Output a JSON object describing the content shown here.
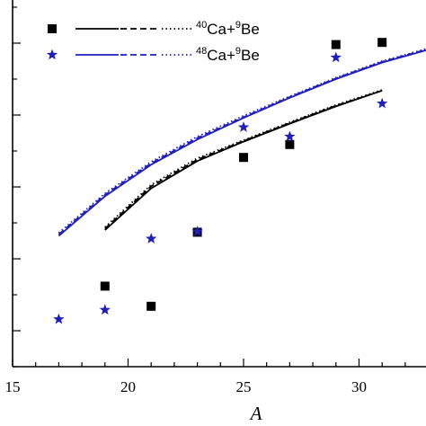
{
  "chart_data": {
    "type": "scatter",
    "xlabel": "A",
    "ylabel": "",
    "xlim": [
      15,
      32.9
    ],
    "ylim": [
      0,
      5.1
    ],
    "x_ticks": [
      15,
      20,
      25,
      30
    ],
    "x_tick_labels": [
      "15",
      "20",
      "25",
      "30"
    ],
    "y_ticks": [
      0.5,
      1.5,
      2.5,
      3.5,
      4.5
    ],
    "grid": false,
    "legend_position": "top-left",
    "series": [
      {
        "name_parts": {
          "mass1": "40",
          "elem1": "Ca+",
          "mass2": "9",
          "elem2": "Be"
        },
        "marker": "square",
        "color": "#000000",
        "points": [
          {
            "x": 19,
            "y": 1.12
          },
          {
            "x": 21,
            "y": 0.84
          },
          {
            "x": 23,
            "y": 1.87
          },
          {
            "x": 25,
            "y": 2.91
          },
          {
            "x": 27,
            "y": 3.09
          },
          {
            "x": 29,
            "y": 4.48
          },
          {
            "x": 31,
            "y": 4.51
          }
        ],
        "curves": [
          {
            "style": "solid",
            "points": [
              [
                19,
                1.9
              ],
              [
                21,
                2.48
              ],
              [
                23,
                2.86
              ],
              [
                25,
                3.13
              ],
              [
                27,
                3.38
              ],
              [
                29,
                3.62
              ],
              [
                31,
                3.84
              ]
            ]
          },
          {
            "style": "dashed",
            "points": [
              [
                19,
                1.92
              ],
              [
                21,
                2.51
              ],
              [
                23,
                2.88
              ],
              [
                25,
                3.14
              ],
              [
                27,
                3.39
              ],
              [
                29,
                3.63
              ],
              [
                31,
                3.84
              ]
            ]
          },
          {
            "style": "dotted",
            "points": [
              [
                19,
                1.94
              ],
              [
                21,
                2.53
              ],
              [
                23,
                2.9
              ],
              [
                25,
                3.15
              ],
              [
                27,
                3.4
              ],
              [
                29,
                3.64
              ],
              [
                31,
                3.85
              ]
            ]
          }
        ]
      },
      {
        "name_parts": {
          "mass1": "48",
          "elem1": "Ca+",
          "mass2": "9",
          "elem2": "Be"
        },
        "marker": "star",
        "color": "#1f1fbf",
        "points": [
          {
            "x": 17,
            "y": 0.66
          },
          {
            "x": 19,
            "y": 0.79
          },
          {
            "x": 21,
            "y": 1.78
          },
          {
            "x": 23,
            "y": 1.88
          },
          {
            "x": 25,
            "y": 3.33
          },
          {
            "x": 27,
            "y": 3.2
          },
          {
            "x": 29,
            "y": 4.3
          },
          {
            "x": 31,
            "y": 3.66
          }
        ],
        "curves": [
          {
            "style": "solid",
            "points": [
              [
                17,
                1.82
              ],
              [
                19,
                2.37
              ],
              [
                21,
                2.81
              ],
              [
                23,
                3.16
              ],
              [
                25,
                3.46
              ],
              [
                27,
                3.74
              ],
              [
                29,
                4.0
              ],
              [
                31,
                4.23
              ],
              [
                32.9,
                4.4
              ]
            ]
          },
          {
            "style": "dashed",
            "points": [
              [
                17,
                1.84
              ],
              [
                19,
                2.39
              ],
              [
                21,
                2.83
              ],
              [
                23,
                3.18
              ],
              [
                25,
                3.47
              ],
              [
                27,
                3.75
              ],
              [
                29,
                4.01
              ],
              [
                31,
                4.24
              ],
              [
                32.9,
                4.41
              ]
            ]
          },
          {
            "style": "dotted",
            "points": [
              [
                17,
                1.86
              ],
              [
                19,
                2.41
              ],
              [
                21,
                2.85
              ],
              [
                23,
                3.2
              ],
              [
                25,
                3.49
              ],
              [
                27,
                3.76
              ],
              [
                29,
                4.02
              ],
              [
                31,
                4.25
              ],
              [
                32.9,
                4.42
              ]
            ]
          }
        ]
      }
    ]
  }
}
